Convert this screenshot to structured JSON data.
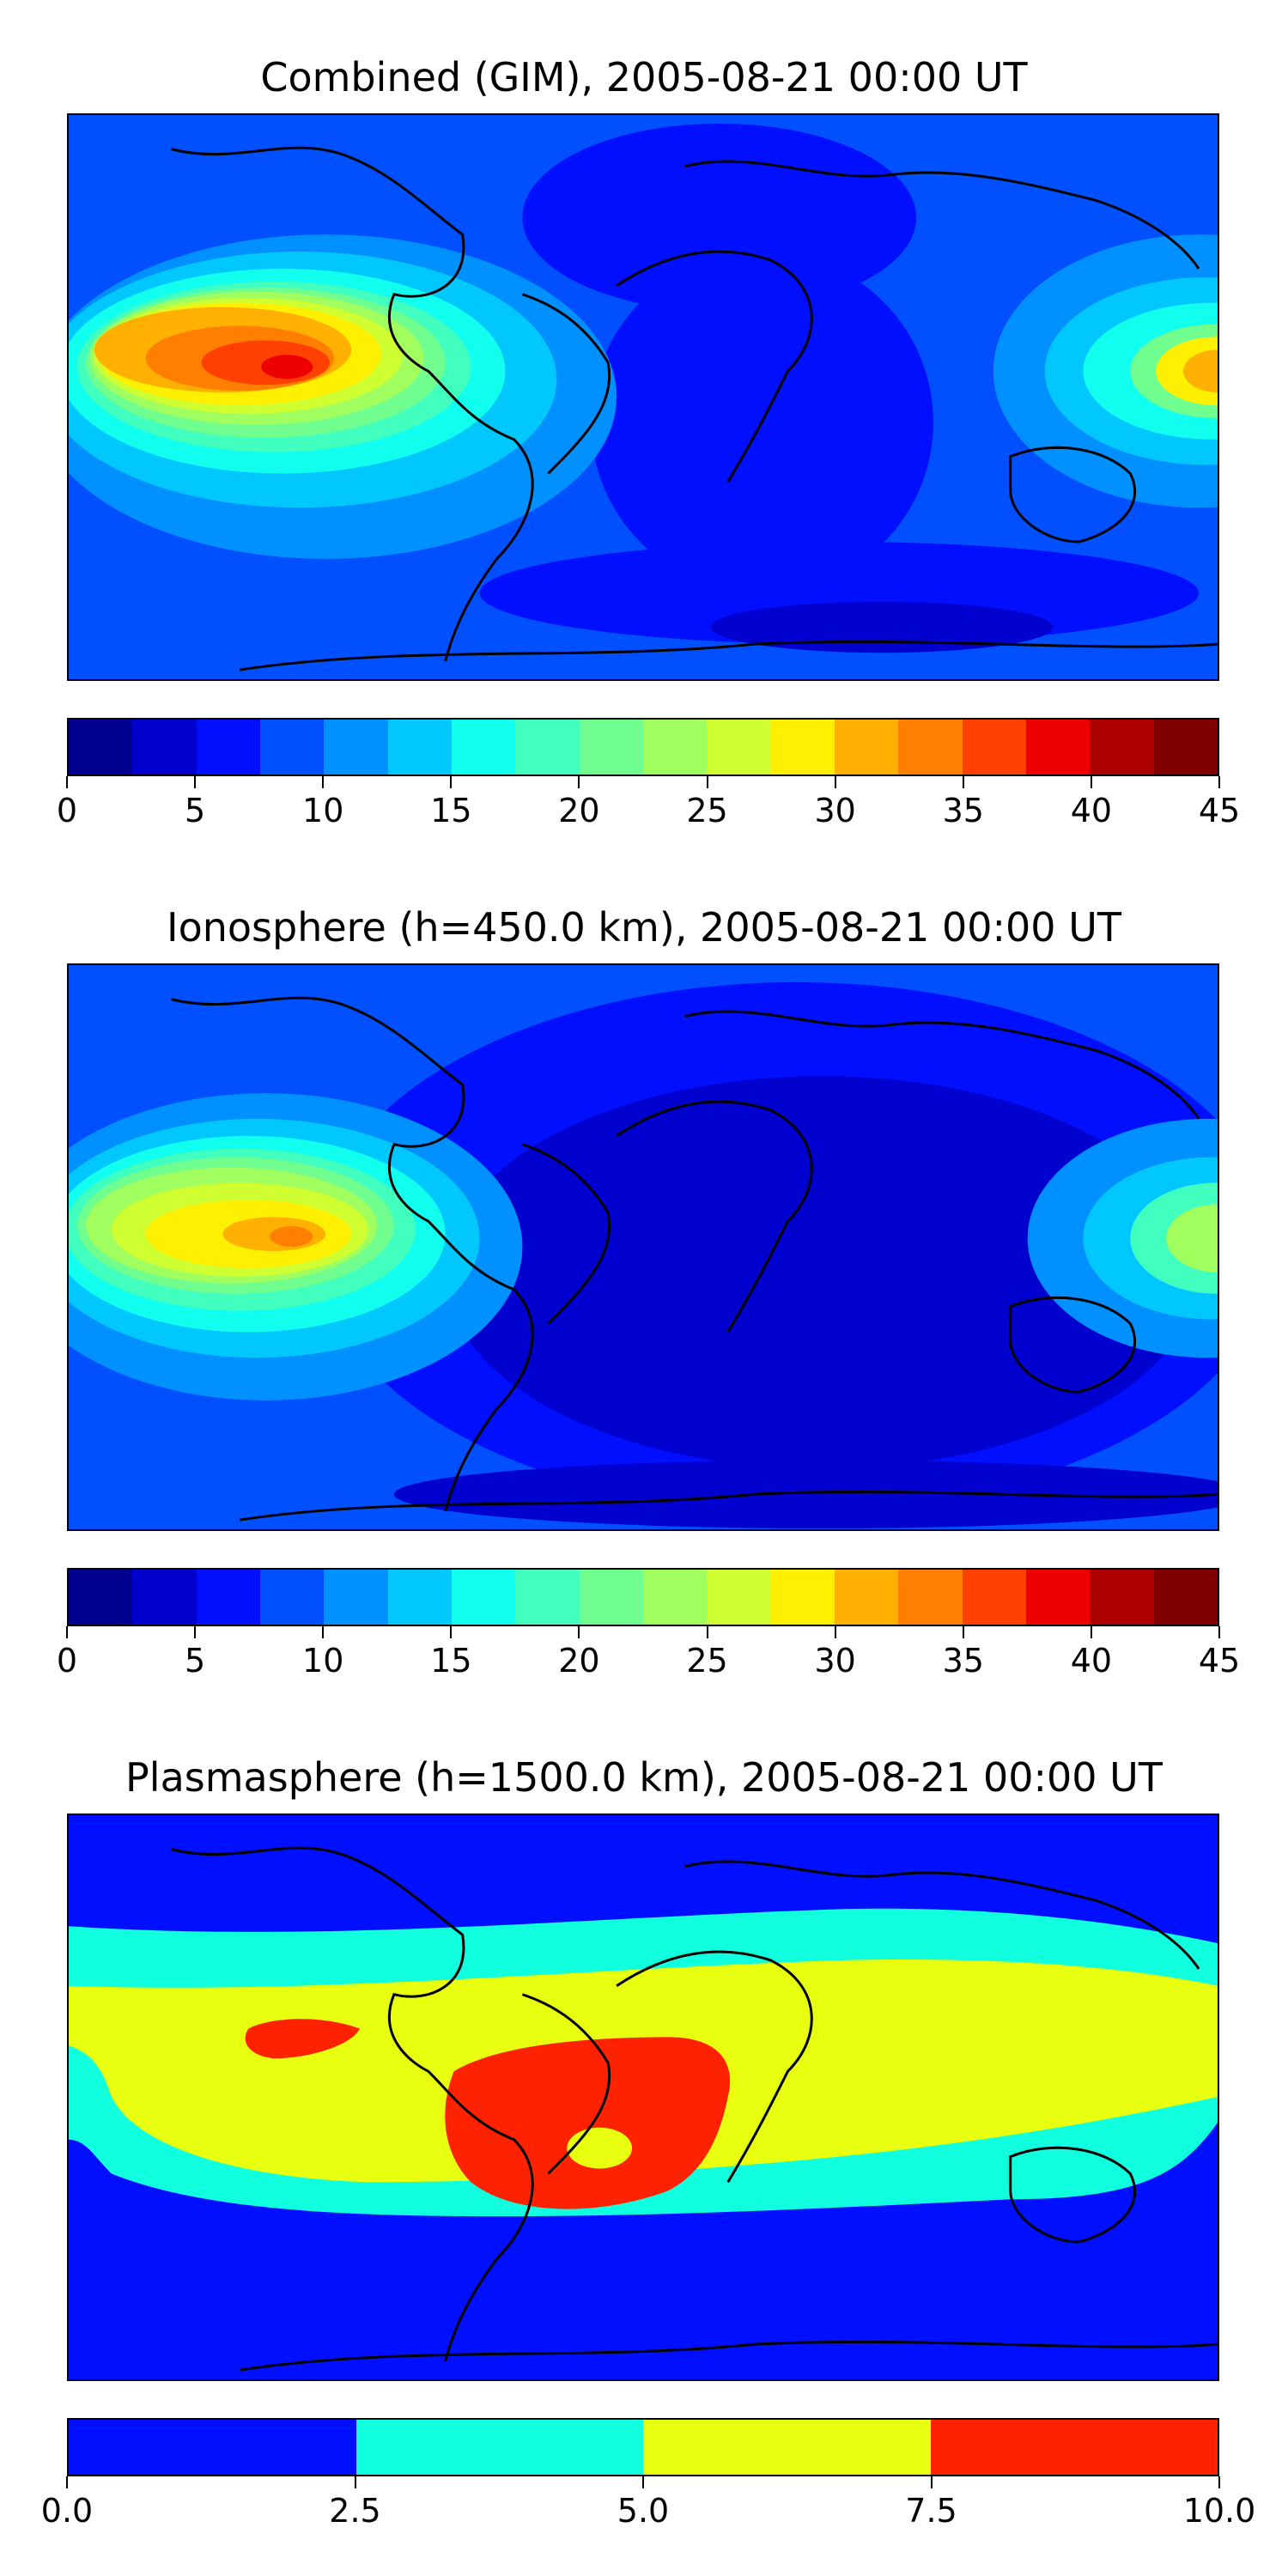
{
  "panels": [
    {
      "title": "Combined (GIM), 2005-08-21 00:00 UT",
      "colorbar": {
        "colors": [
          "#00008f",
          "#0000cf",
          "#0010ff",
          "#0050ff",
          "#0090ff",
          "#00c8ff",
          "#10ffef",
          "#40ffbf",
          "#70ff8f",
          "#a0ff5f",
          "#cfff30",
          "#ffef00",
          "#ffb000",
          "#ff8000",
          "#ff4000",
          "#ef0000",
          "#ad0000",
          "#800000"
        ],
        "ticks": [
          "0",
          "5",
          "10",
          "15",
          "20",
          "25",
          "30",
          "35",
          "40",
          "45"
        ],
        "range": [
          0,
          45
        ]
      }
    },
    {
      "title": "Ionosphere  (h=450.0 km), 2005-08-21 00:00 UT",
      "colorbar": {
        "colors": [
          "#00008f",
          "#0000cf",
          "#0010ff",
          "#0050ff",
          "#0090ff",
          "#00c8ff",
          "#10ffef",
          "#40ffbf",
          "#70ff8f",
          "#a0ff5f",
          "#cfff30",
          "#ffef00",
          "#ffb000",
          "#ff8000",
          "#ff4000",
          "#ef0000",
          "#ad0000",
          "#800000"
        ],
        "ticks": [
          "0",
          "5",
          "10",
          "15",
          "20",
          "25",
          "30",
          "35",
          "40",
          "45"
        ],
        "range": [
          0,
          45
        ]
      }
    },
    {
      "title": "Plasmasphere (h=1500.0 km), 2005-08-21 00:00 UT",
      "colorbar": {
        "colors": [
          "#0010ff",
          "#10ffdf",
          "#e8ff10",
          "#ff2200"
        ],
        "ticks": [
          "0.0",
          "2.5",
          "5.0",
          "7.5",
          "10.0"
        ],
        "range": [
          0,
          10
        ]
      }
    }
  ]
}
